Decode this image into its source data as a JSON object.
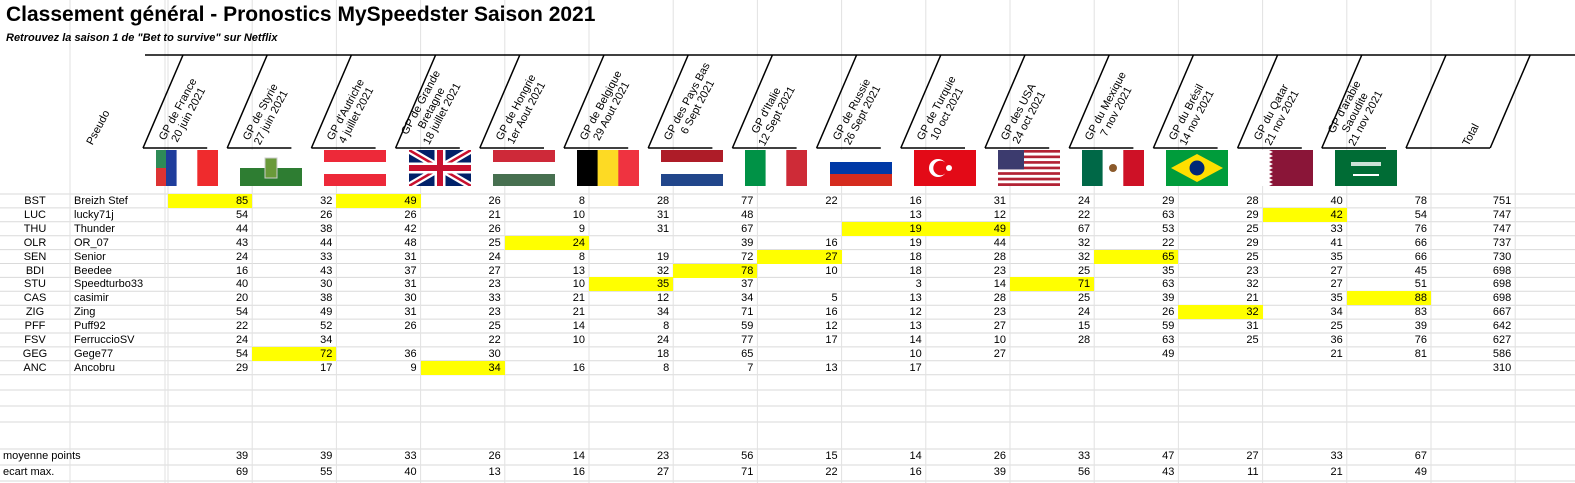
{
  "title": "Classement général - Pronostics MySpeedster Saison 2021",
  "subtitle": "Retrouvez la saison 1 de \"Bet to survive\" sur Netflix",
  "pseudo_header": "Pseudo",
  "total_header": "Total",
  "highlight_color": "#ffff00",
  "races": [
    {
      "lines": [
        "GP de France",
        "20 juin 2021"
      ],
      "flag": "flag-france"
    },
    {
      "lines": [
        "GP de Styrie",
        "27 juin 2021"
      ],
      "flag": "flag-styria"
    },
    {
      "lines": [
        "GP d'Autriche",
        "4 juillet 2021"
      ],
      "flag": "flag-austria"
    },
    {
      "lines": [
        "GP de Grande",
        "Bretagne",
        "18 juillet 2021"
      ],
      "flag": "flag-uk"
    },
    {
      "lines": [
        "GP de Hongrie",
        "1er Aout 2021"
      ],
      "flag": "flag-hungary"
    },
    {
      "lines": [
        "GP de Belgique",
        "29 Aout 2021"
      ],
      "flag": "flag-belgium"
    },
    {
      "lines": [
        "GP des Pays Bas",
        "6 Sept 2021"
      ],
      "flag": "flag-netherlands"
    },
    {
      "lines": [
        "GP d'Italie",
        "12 Sept 2021"
      ],
      "flag": "flag-italy"
    },
    {
      "lines": [
        "GP de Russie",
        "26 Sept 2021"
      ],
      "flag": "flag-russia"
    },
    {
      "lines": [
        "GP de Turquie",
        "10 oct 2021"
      ],
      "flag": "flag-turkey"
    },
    {
      "lines": [
        "GP des USA",
        "24 oct 2021"
      ],
      "flag": "flag-usa"
    },
    {
      "lines": [
        "GP du Mexique",
        "7 nov 2021"
      ],
      "flag": "flag-mexico"
    },
    {
      "lines": [
        "GP du Brésil",
        "14 nov 2021"
      ],
      "flag": "flag-brazil"
    },
    {
      "lines": [
        "GP du Qatar",
        "21 nov 2021"
      ],
      "flag": "flag-qatar"
    },
    {
      "lines": [
        "GP d'arabie",
        "Saoudite",
        "21 nov 2021"
      ],
      "flag": "flag-saudi-arabia"
    }
  ],
  "players": [
    {
      "code": "BST",
      "pseudo": "Breizh Stef",
      "scores": [
        "85",
        "32",
        "49",
        "26",
        "8",
        "28",
        "77",
        "22",
        "16",
        "31",
        "24",
        "29",
        "28",
        "40",
        "78"
      ],
      "total": "751",
      "best": [
        0,
        2
      ]
    },
    {
      "code": "LUC",
      "pseudo": "lucky71j",
      "scores": [
        "54",
        "26",
        "26",
        "21",
        "10",
        "31",
        "48",
        "",
        "13",
        "12",
        "22",
        "63",
        "29",
        "42",
        "54"
      ],
      "total": "747",
      "best": [
        13
      ]
    },
    {
      "code": "THU",
      "pseudo": "Thunder",
      "scores": [
        "44",
        "38",
        "42",
        "26",
        "9",
        "31",
        "67",
        "",
        "19",
        "49",
        "67",
        "53",
        "25",
        "33",
        "76"
      ],
      "total": "747",
      "best": [
        8,
        9
      ]
    },
    {
      "code": "OLR",
      "pseudo": "OR_07",
      "scores": [
        "43",
        "44",
        "48",
        "25",
        "24",
        "",
        "39",
        "16",
        "19",
        "44",
        "32",
        "22",
        "29",
        "41",
        "66"
      ],
      "total": "737",
      "best": [
        4
      ]
    },
    {
      "code": "SEN",
      "pseudo": "Senior",
      "scores": [
        "24",
        "33",
        "31",
        "24",
        "8",
        "19",
        "72",
        "27",
        "18",
        "28",
        "32",
        "65",
        "25",
        "35",
        "66"
      ],
      "total": "730",
      "best": [
        7,
        11
      ]
    },
    {
      "code": "BDI",
      "pseudo": "Beedee",
      "scores": [
        "16",
        "43",
        "37",
        "27",
        "13",
        "32",
        "78",
        "10",
        "18",
        "23",
        "25",
        "35",
        "23",
        "27",
        "45"
      ],
      "total": "698",
      "best": [
        6
      ]
    },
    {
      "code": "STU",
      "pseudo": "Speedturbo33",
      "scores": [
        "40",
        "30",
        "31",
        "23",
        "10",
        "35",
        "37",
        "",
        "3",
        "14",
        "71",
        "63",
        "32",
        "27",
        "51"
      ],
      "total": "698",
      "best": [
        5,
        10
      ]
    },
    {
      "code": "CAS",
      "pseudo": "casimir",
      "scores": [
        "20",
        "38",
        "30",
        "33",
        "21",
        "12",
        "34",
        "5",
        "13",
        "28",
        "25",
        "39",
        "21",
        "35",
        "88"
      ],
      "total": "698",
      "best": [
        14
      ]
    },
    {
      "code": "ZIG",
      "pseudo": "Zing",
      "scores": [
        "54",
        "49",
        "31",
        "23",
        "21",
        "34",
        "71",
        "16",
        "12",
        "23",
        "24",
        "26",
        "32",
        "34",
        "83"
      ],
      "total": "667",
      "best": [
        12
      ]
    },
    {
      "code": "PFF",
      "pseudo": "Puff92",
      "scores": [
        "22",
        "52",
        "26",
        "25",
        "14",
        "8",
        "59",
        "12",
        "13",
        "27",
        "15",
        "59",
        "31",
        "25",
        "39"
      ],
      "total": "642",
      "best": []
    },
    {
      "code": "FSV",
      "pseudo": "FerruccioSV",
      "scores": [
        "24",
        "34",
        "",
        "22",
        "10",
        "24",
        "77",
        "17",
        "14",
        "10",
        "28",
        "63",
        "25",
        "36",
        "76"
      ],
      "total": "627",
      "best": []
    },
    {
      "code": "GEG",
      "pseudo": "Gege77",
      "scores": [
        "54",
        "72",
        "36",
        "30",
        "",
        "18",
        "65",
        "",
        "10",
        "27",
        "",
        "49",
        "",
        "21",
        "81"
      ],
      "total": "586",
      "best": [
        1
      ]
    },
    {
      "code": "ANC",
      "pseudo": "Ancobru",
      "scores": [
        "29",
        "17",
        "9",
        "34",
        "16",
        "8",
        "7",
        "13",
        "17",
        "",
        "",
        "",
        "",
        "",
        ""
      ],
      "total": "310",
      "best": [
        3
      ]
    }
  ],
  "stats": [
    {
      "label": "moyenne points",
      "values": [
        "39",
        "39",
        "33",
        "26",
        "14",
        "23",
        "56",
        "15",
        "14",
        "26",
        "33",
        "47",
        "27",
        "33",
        "67"
      ]
    },
    {
      "label": "ecart max.",
      "values": [
        "69",
        "55",
        "40",
        "13",
        "16",
        "27",
        "71",
        "22",
        "16",
        "39",
        "56",
        "43",
        "11",
        "21",
        "49"
      ]
    }
  ]
}
